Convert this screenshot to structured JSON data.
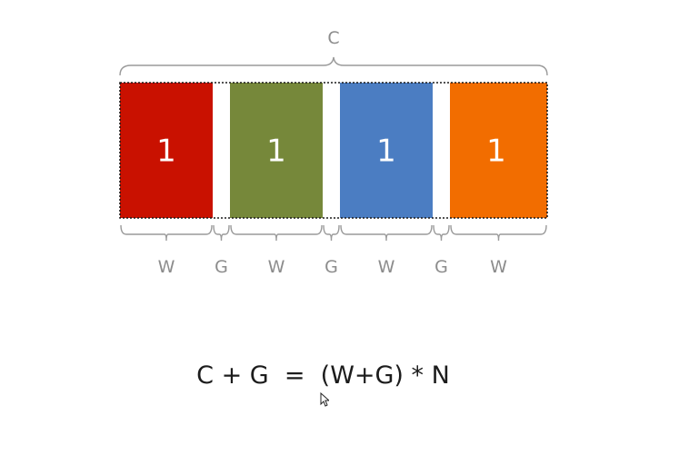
{
  "diagram": {
    "total_label": "C",
    "blocks": [
      {
        "label": "1",
        "color": "#c91100"
      },
      {
        "label": "1",
        "color": "#76883a"
      },
      {
        "label": "1",
        "color": "#4b7dc2"
      },
      {
        "label": "1",
        "color": "#f26d00"
      }
    ],
    "gap_color": "#ffffff",
    "segments": [
      "W",
      "G",
      "W",
      "G",
      "W",
      "G",
      "W"
    ],
    "formula": "C + G  =  (W+G) * N"
  },
  "cursor_icon": "pointer-arrow-icon"
}
